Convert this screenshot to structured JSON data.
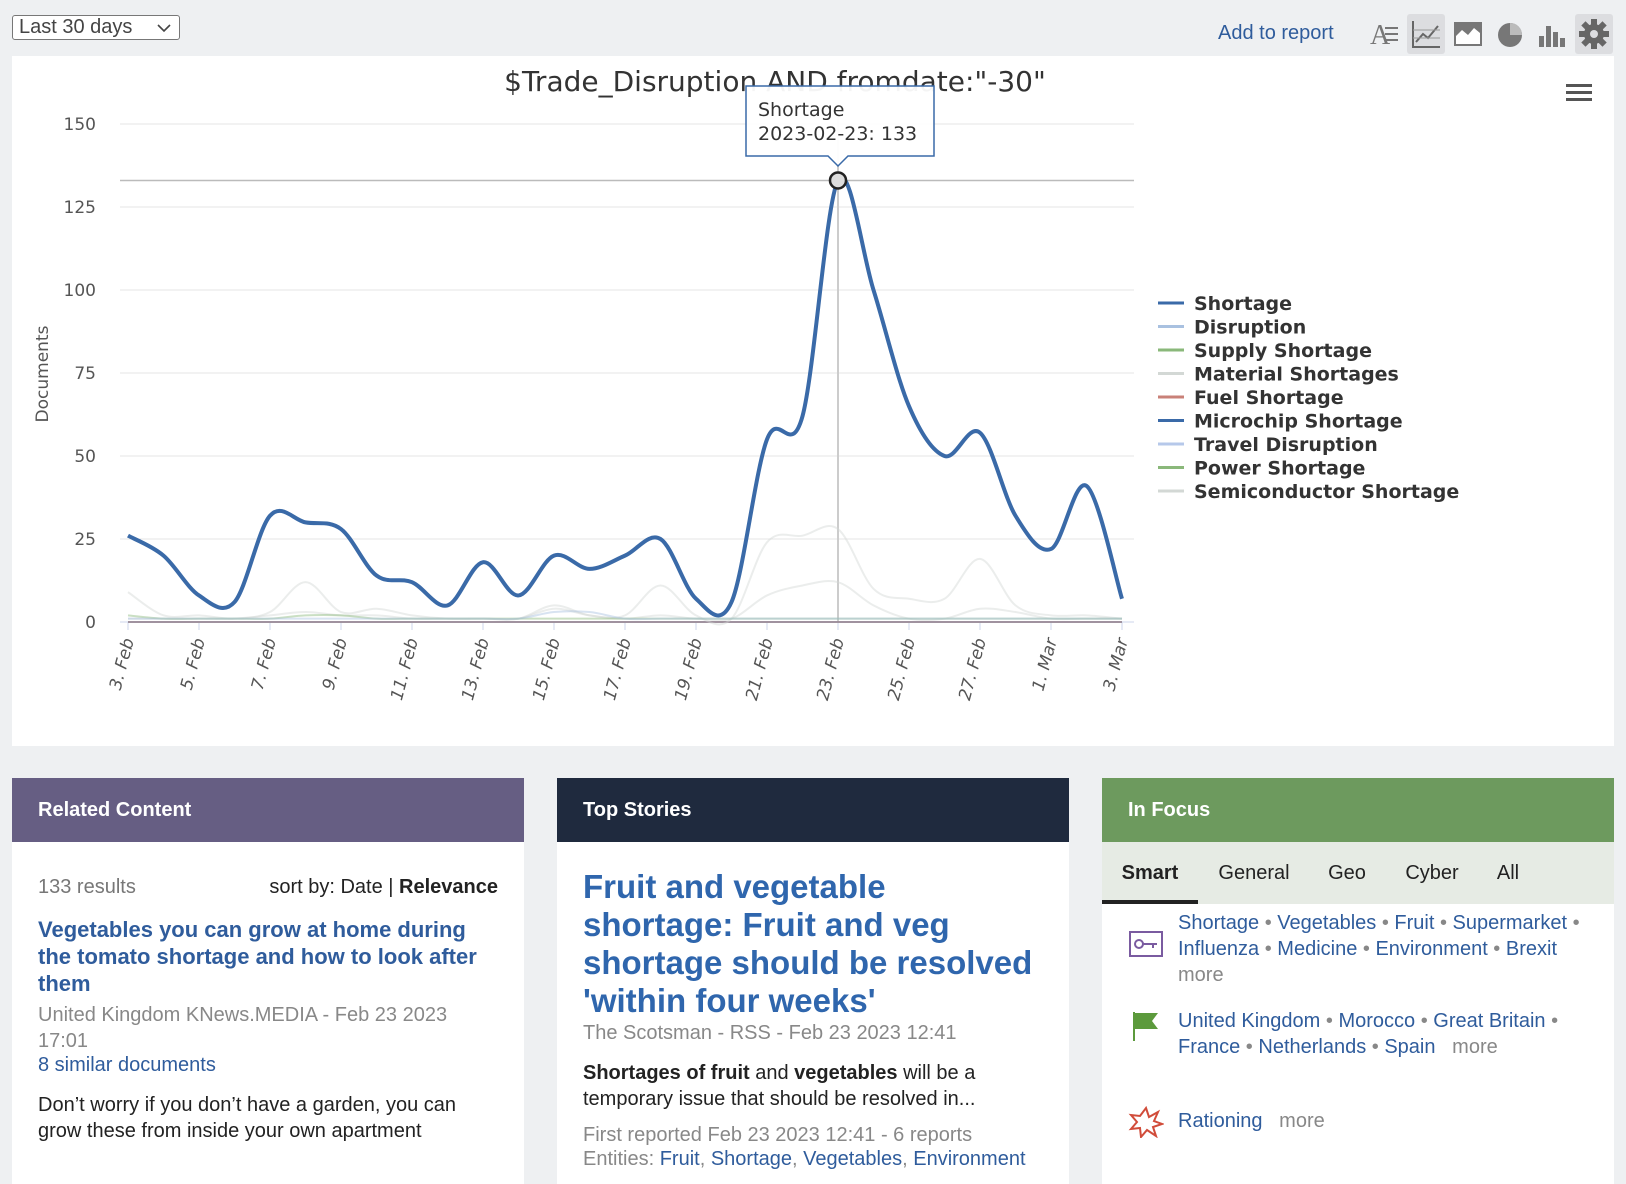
{
  "toolbar": {
    "range_label": "Last 30 days",
    "add_to_report": "Add to report",
    "icons": [
      "text-size-icon",
      "line-chart-icon",
      "area-chart-icon",
      "pie-chart-icon",
      "bar-chart-icon",
      "gear-icon"
    ]
  },
  "chart_data": {
    "type": "line",
    "title": "$Trade_Disruption AND fromdate:\"-30\"",
    "ylabel": "Documents",
    "xlabel": "",
    "ylim": [
      0,
      150
    ],
    "yticks": [
      0,
      25,
      50,
      75,
      100,
      125,
      150
    ],
    "x": [
      "2023-02-03",
      "2023-02-04",
      "2023-02-05",
      "2023-02-06",
      "2023-02-07",
      "2023-02-08",
      "2023-02-09",
      "2023-02-10",
      "2023-02-11",
      "2023-02-12",
      "2023-02-13",
      "2023-02-14",
      "2023-02-15",
      "2023-02-16",
      "2023-02-17",
      "2023-02-18",
      "2023-02-19",
      "2023-02-20",
      "2023-02-21",
      "2023-02-22",
      "2023-02-23",
      "2023-02-24",
      "2023-02-25",
      "2023-02-26",
      "2023-02-27",
      "2023-02-28",
      "2023-03-01",
      "2023-03-02",
      "2023-03-03"
    ],
    "xtick_labels": [
      "3. Feb",
      "5. Feb",
      "7. Feb",
      "9. Feb",
      "11. Feb",
      "13. Feb",
      "15. Feb",
      "17. Feb",
      "19. Feb",
      "21. Feb",
      "23. Feb",
      "25. Feb",
      "27. Feb",
      "1. Mar",
      "3. Mar"
    ],
    "series": [
      {
        "name": "Shortage",
        "color": "#3a6aa8",
        "values": [
          26,
          20,
          8,
          6,
          32,
          30,
          28,
          14,
          12,
          5,
          18,
          8,
          20,
          16,
          20,
          25,
          7,
          6,
          55,
          62,
          133,
          100,
          65,
          50,
          57,
          32,
          22,
          41,
          7
        ]
      },
      {
        "name": "Disruption",
        "color": "#a9c1e0",
        "values": [
          1,
          1,
          1,
          1,
          1,
          1,
          1,
          1,
          1,
          1,
          1,
          1,
          3,
          3,
          1,
          1,
          1,
          1,
          1,
          1,
          1,
          1,
          1,
          1,
          1,
          1,
          1,
          1,
          1
        ]
      },
      {
        "name": "Supply Shortage",
        "color": "#8ab87a",
        "values": [
          2,
          1,
          1,
          1,
          1,
          2,
          2,
          1,
          1,
          1,
          1,
          1,
          1,
          1,
          1,
          1,
          1,
          1,
          1,
          1,
          1,
          1,
          1,
          1,
          1,
          1,
          1,
          1,
          1
        ]
      },
      {
        "name": "Material Shortages",
        "color": "#d3d8d5",
        "values": [
          9,
          2,
          2,
          1,
          3,
          12,
          3,
          4,
          2,
          1,
          1,
          1,
          5,
          2,
          2,
          11,
          2,
          1,
          24,
          26,
          28,
          10,
          7,
          7,
          19,
          5,
          2,
          2,
          1
        ]
      },
      {
        "name": "Fuel Shortage",
        "color": "#c98178",
        "values": [
          0,
          0,
          0,
          0,
          0,
          0,
          0,
          0,
          0,
          0,
          0,
          0,
          0,
          0,
          0,
          0,
          0,
          0,
          0,
          0,
          0,
          0,
          0,
          0,
          0,
          0,
          0,
          0,
          0
        ]
      },
      {
        "name": "Microchip Shortage",
        "color": "#3a6aa8",
        "values": [
          0,
          0,
          0,
          0,
          0,
          0,
          0,
          0,
          0,
          0,
          0,
          0,
          0,
          0,
          0,
          0,
          0,
          0,
          0,
          0,
          0,
          0,
          0,
          0,
          0,
          0,
          0,
          0,
          0
        ]
      },
      {
        "name": "Travel Disruption",
        "color": "#b6c8ea",
        "values": [
          0,
          0,
          0,
          0,
          0,
          0,
          0,
          0,
          0,
          0,
          0,
          0,
          0,
          0,
          0,
          0,
          0,
          0,
          0,
          0,
          0,
          0,
          0,
          0,
          0,
          0,
          0,
          0,
          0
        ]
      },
      {
        "name": "Power Shortage",
        "color": "#8ab87a",
        "values": [
          0,
          0,
          0,
          0,
          0,
          0,
          0,
          0,
          0,
          0,
          0,
          0,
          0,
          0,
          0,
          0,
          0,
          0,
          0,
          0,
          0,
          0,
          0,
          0,
          0,
          0,
          0,
          0,
          0
        ]
      },
      {
        "name": "Semiconductor Shortage",
        "color": "#d3d8d5",
        "values": [
          1,
          1,
          1,
          1,
          2,
          3,
          2,
          2,
          1,
          1,
          1,
          1,
          4,
          2,
          1,
          2,
          1,
          1,
          8,
          11,
          12,
          5,
          1,
          1,
          4,
          3,
          1,
          1,
          1
        ]
      }
    ],
    "tooltip": {
      "series": "Shortage",
      "text": "2023-02-23: 133",
      "index": 20
    },
    "legend": "right",
    "grid": true
  },
  "related": {
    "header": "Related Content",
    "results": "133 results",
    "sort_prefix": "sort by: Date | ",
    "sort_active": "Relevance",
    "item_title": "Vegetables you can grow at home during the tomato shortage and how to look after them",
    "item_source": "United Kingdom KNews.MEDIA - Feb 23 2023 17:01",
    "item_similar": "8 similar documents",
    "item_snippet": "Don’t worry if you don’t have a garden, you can grow these from inside your own apartment"
  },
  "top_stories": {
    "header": "Top Stories",
    "title": "Fruit and vegetable shortage: Fruit and veg shortage should be resolved 'within four weeks'",
    "source": "The Scotsman - RSS - Feb 23 2023 12:41",
    "snippet_parts": [
      "Shortages of fruit",
      " and ",
      "vegetables",
      " will be a temporary issue that should be resolved in..."
    ],
    "first_reported": "First reported Feb 23 2023 12:41 - 6 reports",
    "entities_label": "Entities: ",
    "entities": [
      "Fruit",
      "Shortage",
      "Vegetables",
      "Environment"
    ]
  },
  "in_focus": {
    "header": "In Focus",
    "tabs": [
      "Smart",
      "General",
      "Geo",
      "Cyber",
      "All"
    ],
    "active_tab": "Smart",
    "rows": [
      {
        "icon": "key-icon",
        "items": [
          "Shortage",
          "Vegetables",
          "Fruit",
          "Supermarket",
          "Influenza",
          "Medicine",
          "Environment",
          "Brexit"
        ],
        "more": "more"
      },
      {
        "icon": "flag-icon",
        "items": [
          "United Kingdom",
          "Morocco",
          "Great Britain",
          "France",
          "Netherlands",
          "Spain"
        ],
        "more": "more"
      },
      {
        "icon": "explosion-icon",
        "items": [
          "Rationing"
        ],
        "more": "more"
      }
    ]
  }
}
